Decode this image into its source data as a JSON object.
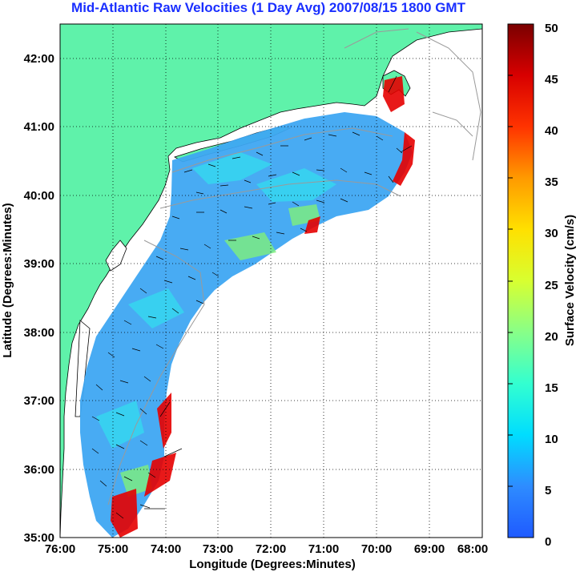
{
  "title": "Mid-Atlantic Raw Velocities (1 Day Avg) 2007/08/15 1800 GMT",
  "xlabel": "Longitude (Degrees:Minutes)",
  "ylabel": "Latitude (Degrees:Minutes)",
  "colorbar_label": "Surface Velocity (cm/s)",
  "x_ticks": [
    "76:00",
    "75:00",
    "74:00",
    "73:00",
    "72:00",
    "71:00",
    "70:00",
    "69:00",
    "68:00"
  ],
  "y_ticks": [
    "35:00",
    "36:00",
    "37:00",
    "38:00",
    "39:00",
    "40:00",
    "41:00",
    "42:00"
  ],
  "colorbar_ticks": [
    "0",
    "5",
    "10",
    "15",
    "20",
    "25",
    "30",
    "35",
    "40",
    "45",
    "50"
  ],
  "map": {
    "lon_range": [
      -76,
      -68
    ],
    "lat_range": [
      35,
      42.5
    ],
    "velocity_range_cm_s": [
      0,
      50
    ],
    "land_color": "#5ff2aa",
    "grid": true
  }
}
